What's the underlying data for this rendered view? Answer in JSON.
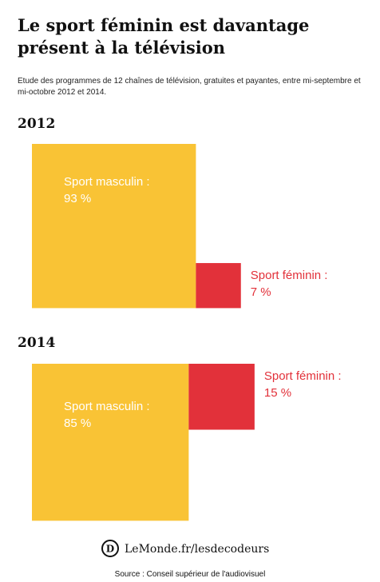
{
  "header": {
    "title": "Le sport féminin est davantage présent à la télévision",
    "subtitle": "Etude des programmes de 12 chaînes de télévision, gratuites et payantes, entre mi-septembre et mi-octobre 2012 et 2014."
  },
  "chart_data": [
    {
      "type": "square",
      "title": "2012",
      "categories": [
        "Sport masculin :",
        "Sport féminin :"
      ],
      "values": [
        93,
        7
      ],
      "value_labels": [
        "93 %",
        "7 %"
      ],
      "colors": [
        "#f9c335",
        "#e2313a"
      ]
    },
    {
      "type": "square",
      "title": "2014",
      "categories": [
        "Sport masculin :",
        "Sport féminin :"
      ],
      "values": [
        85,
        15
      ],
      "value_labels": [
        "85 %",
        "15 %"
      ],
      "colors": [
        "#f9c335",
        "#e2313a"
      ]
    }
  ],
  "footer": {
    "brand": "LeMonde.fr/lesdecodeurs",
    "source": "Source : Conseil supérieur de l'audiovisuel"
  }
}
